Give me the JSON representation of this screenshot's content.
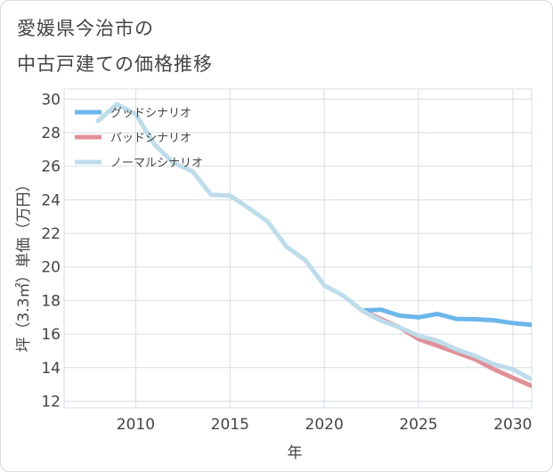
{
  "title_line1": "愛媛県今治市の",
  "title_line2": "中古戸建ての価格推移",
  "chart_data": {
    "type": "line",
    "xlabel": "年",
    "ylabel": "坪（3.3㎡）単価（万円）",
    "xlim": [
      2006.2,
      2031
    ],
    "ylim": [
      11.6,
      30.6
    ],
    "x_ticks": [
      2010,
      2015,
      2020,
      2025,
      2030
    ],
    "y_ticks": [
      12,
      14,
      16,
      18,
      20,
      22,
      24,
      26,
      28,
      30
    ],
    "grid": true,
    "legend_position": "top-left",
    "series": [
      {
        "name": "グッドシナリオ",
        "color": "#6cb6ea",
        "x": [
          2022,
          2023,
          2024,
          2025,
          2026,
          2027,
          2028,
          2029,
          2030,
          2031
        ],
        "y": [
          17.4,
          17.45,
          17.1,
          17.0,
          17.2,
          16.9,
          16.88,
          16.82,
          16.65,
          16.55
        ]
      },
      {
        "name": "バッドシナリオ",
        "color": "#e09098",
        "x": [
          2022,
          2023,
          2024,
          2025,
          2026,
          2027,
          2028,
          2029,
          2030,
          2031
        ],
        "y": [
          17.4,
          16.9,
          16.4,
          15.7,
          15.3,
          14.9,
          14.5,
          13.9,
          13.4,
          12.9
        ]
      },
      {
        "name": "ノーマルシナリオ",
        "color": "#bedcea",
        "x": [
          2008,
          2009,
          2010,
          2011,
          2012,
          2013,
          2014,
          2015,
          2016,
          2017,
          2018,
          2019,
          2020,
          2021,
          2022,
          2023,
          2024,
          2025,
          2026,
          2027,
          2028,
          2029,
          2030,
          2031
        ],
        "y": [
          28.7,
          29.7,
          29.1,
          27.3,
          26.2,
          25.7,
          24.3,
          24.25,
          23.5,
          22.7,
          21.2,
          20.4,
          18.9,
          18.3,
          17.4,
          16.8,
          16.4,
          15.9,
          15.6,
          15.1,
          14.7,
          14.2,
          13.9,
          13.3
        ]
      }
    ]
  }
}
